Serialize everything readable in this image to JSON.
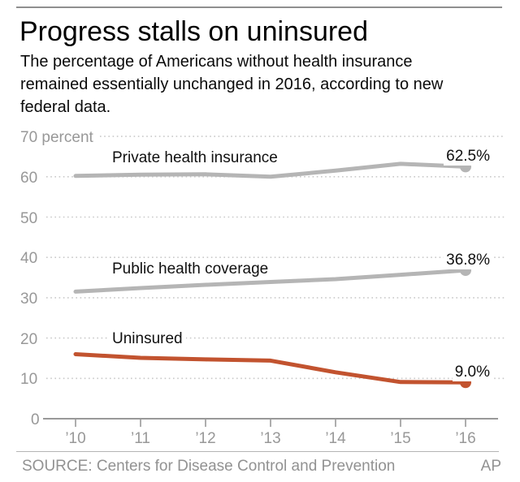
{
  "header": {
    "title": "Progress stalls on uninsured",
    "subtitle_lines": [
      "The percentage of Americans without health insurance",
      "remained essentially unchanged in 2016, according to new",
      "federal data."
    ]
  },
  "footer": {
    "source": "SOURCE: Centers for Disease Control and Prevention",
    "credit": "AP"
  },
  "colors": {
    "gray_series": "#b5b5b5",
    "red_series": "#c2532f",
    "axis": "#999999",
    "gridline": "#c9c9c9",
    "text_dark": "#101010",
    "text_gray": "#989898"
  },
  "chart_data": {
    "type": "line",
    "title": "Progress stalls on uninsured",
    "x_labels": [
      "’10",
      "’11",
      "’12",
      "’13",
      "’14",
      "’15",
      "’16"
    ],
    "years": [
      2010,
      2011,
      2012,
      2013,
      2014,
      2015,
      2016
    ],
    "ylim": [
      0,
      70
    ],
    "y_unit": "percent",
    "grid": "horizontal-dotted",
    "legend": "inline-labels-on-chart",
    "y_ticks": [
      {
        "value": 70,
        "label": "70 percent"
      },
      {
        "value": 60,
        "label": "60"
      },
      {
        "value": 50,
        "label": "50"
      },
      {
        "value": 40,
        "label": "40"
      },
      {
        "value": 30,
        "label": "30"
      },
      {
        "value": 20,
        "label": "20"
      },
      {
        "value": 10,
        "label": "10"
      },
      {
        "value": 0,
        "label": "0"
      }
    ],
    "series": [
      {
        "name": "Private health insurance",
        "color_key": "gray_series",
        "values": [
          60.2,
          60.5,
          60.6,
          60.0,
          61.5,
          63.2,
          62.5
        ],
        "end_label": "62.5%"
      },
      {
        "name": "Public health coverage",
        "color_key": "gray_series",
        "values": [
          31.5,
          32.4,
          33.2,
          33.9,
          34.6,
          35.7,
          36.8
        ],
        "end_label": "36.8%"
      },
      {
        "name": "Uninsured",
        "color_key": "red_series",
        "values": [
          16.0,
          15.1,
          14.7,
          14.4,
          11.5,
          9.1,
          9.0
        ],
        "end_label": "9.0%"
      }
    ]
  }
}
